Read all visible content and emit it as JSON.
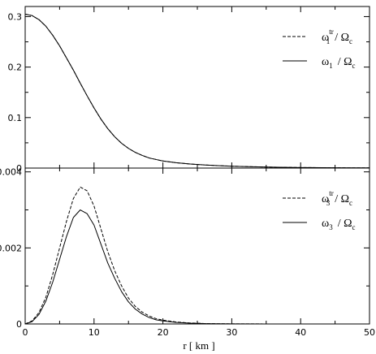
{
  "chart_data": [
    {
      "type": "line",
      "panel": "top",
      "xlim": [
        0,
        50
      ],
      "ylim": [
        0,
        0.32
      ],
      "x_ticks": [
        0,
        10,
        20,
        30,
        40,
        50
      ],
      "y_ticks": [
        0,
        0.1,
        0.2,
        0.3
      ],
      "y_tick_labels": [
        "0",
        "0.1",
        "0.2",
        "0.3"
      ],
      "legend_position": "top-right",
      "series": [
        {
          "legend": {
            "sym": "ω",
            "sup": "tr",
            "sub": "1",
            "rhs": "/ Ω",
            "rhs_sub": "c"
          },
          "style": "dashed",
          "x": [
            0,
            1,
            2,
            3,
            4,
            5,
            6,
            7,
            8,
            9,
            10,
            11,
            12,
            13,
            14,
            15,
            16,
            17,
            18,
            19,
            20,
            22,
            24,
            26,
            28,
            30,
            33,
            36,
            40,
            45,
            50
          ],
          "y": [
            0.305,
            0.302,
            0.294,
            0.281,
            0.263,
            0.242,
            0.218,
            0.194,
            0.168,
            0.143,
            0.119,
            0.097,
            0.078,
            0.062,
            0.049,
            0.039,
            0.031,
            0.025,
            0.02,
            0.017,
            0.014,
            0.0105,
            0.008,
            0.0062,
            0.0048,
            0.0037,
            0.0026,
            0.0018,
            0.0011,
            0.0006,
            0.0003
          ]
        },
        {
          "legend": {
            "sym": "ω",
            "sup": "",
            "sub": "1",
            "rhs": "/ Ω",
            "rhs_sub": "c"
          },
          "style": "solid",
          "x": [
            0,
            1,
            2,
            3,
            4,
            5,
            6,
            7,
            8,
            9,
            10,
            11,
            12,
            13,
            14,
            15,
            16,
            17,
            18,
            19,
            20,
            22,
            24,
            26,
            28,
            30,
            33,
            36,
            40,
            45,
            50
          ],
          "y": [
            0.305,
            0.302,
            0.294,
            0.281,
            0.263,
            0.242,
            0.218,
            0.194,
            0.168,
            0.143,
            0.119,
            0.097,
            0.078,
            0.062,
            0.049,
            0.039,
            0.031,
            0.025,
            0.02,
            0.017,
            0.014,
            0.0105,
            0.008,
            0.0062,
            0.0048,
            0.0037,
            0.0026,
            0.0018,
            0.0011,
            0.0006,
            0.0003
          ]
        }
      ]
    },
    {
      "type": "line",
      "panel": "bottom",
      "xlim": [
        0,
        50
      ],
      "ylim": [
        0,
        0.0041
      ],
      "x_ticks": [
        0,
        10,
        20,
        30,
        40,
        50
      ],
      "x_tick_labels": [
        "0",
        "10",
        "20",
        "30",
        "40",
        "50"
      ],
      "y_ticks": [
        0,
        0.002,
        0.004
      ],
      "y_tick_labels": [
        "0",
        "0.002",
        "0.004"
      ],
      "xlabel": "r [ km ]",
      "legend_position": "top-right",
      "series": [
        {
          "legend": {
            "sym": "ω",
            "sup": "tr",
            "sub": "3",
            "rhs": "/ Ω",
            "rhs_sub": "c"
          },
          "style": "dashed",
          "x": [
            0,
            1,
            2,
            3,
            4,
            5,
            6,
            7,
            8,
            9,
            10,
            11,
            12,
            13,
            14,
            15,
            16,
            17,
            18,
            19,
            20,
            22,
            24,
            26,
            28,
            30,
            35,
            40,
            50
          ],
          "y": [
            0,
            8e-05,
            0.0003,
            0.0007,
            0.0013,
            0.002,
            0.0027,
            0.0033,
            0.0036,
            0.0035,
            0.0031,
            0.0025,
            0.0019,
            0.0014,
            0.001,
            0.00068,
            0.00046,
            0.00031,
            0.00021,
            0.00014,
            0.0001,
            5e-05,
            2.5e-05,
            1.2e-05,
            6e-06,
            3e-06,
            1e-06,
            0,
            0
          ]
        },
        {
          "legend": {
            "sym": "ω",
            "sup": "",
            "sub": "3",
            "rhs": "/ Ω",
            "rhs_sub": "c"
          },
          "style": "solid",
          "x": [
            0,
            1,
            2,
            3,
            4,
            5,
            6,
            7,
            8,
            9,
            10,
            11,
            12,
            13,
            14,
            15,
            16,
            17,
            18,
            19,
            20,
            22,
            24,
            26,
            28,
            30,
            35,
            40,
            50
          ],
          "y": [
            0,
            6e-05,
            0.00025,
            0.0006,
            0.0011,
            0.0017,
            0.0023,
            0.0028,
            0.003,
            0.0029,
            0.0026,
            0.0021,
            0.0016,
            0.0012,
            0.00085,
            0.00058,
            0.00039,
            0.00026,
            0.00017,
            0.00011,
            8e-05,
            4e-05,
            2e-05,
            1e-05,
            5e-06,
            2e-06,
            1e-06,
            0,
            0
          ]
        }
      ]
    }
  ]
}
